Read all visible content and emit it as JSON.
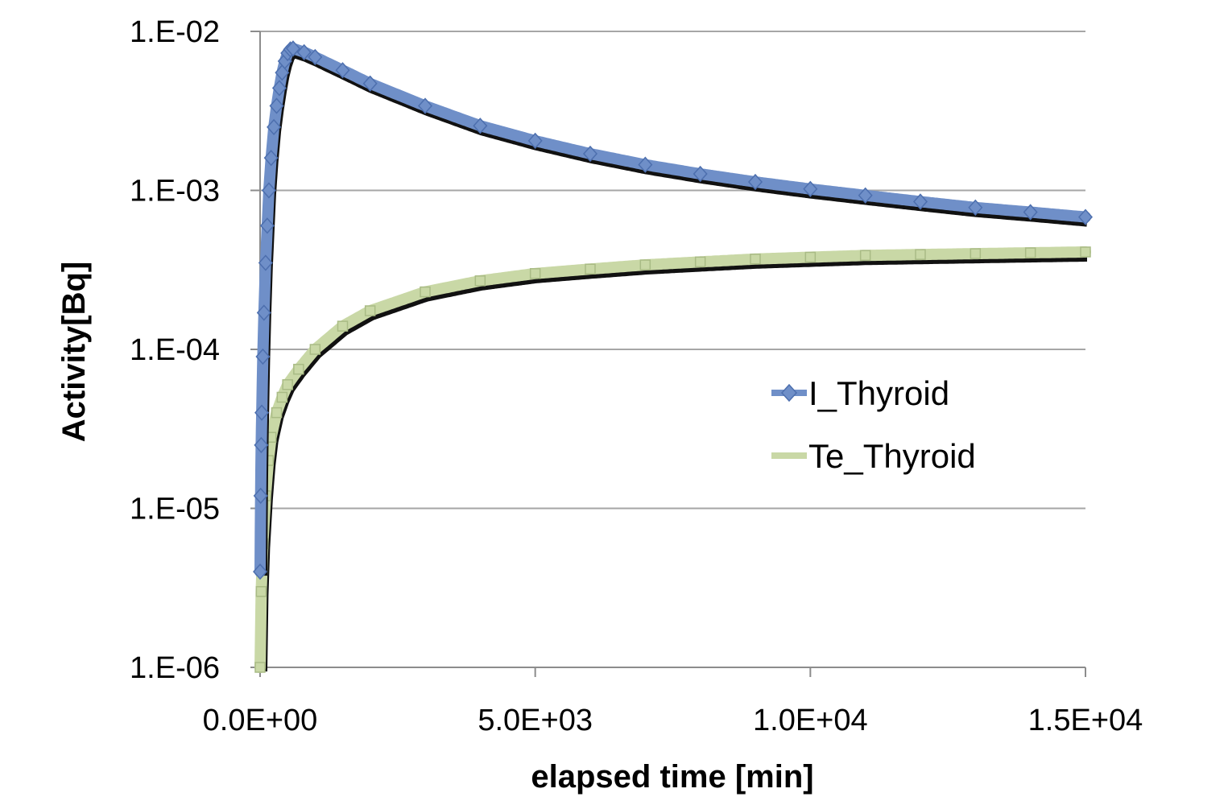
{
  "chart_data": {
    "type": "scatter",
    "title": "",
    "xlabel": "elapsed time [min]",
    "ylabel": "Activity[Bq]",
    "xlim": [
      0,
      15000
    ],
    "ylim": [
      1e-06,
      0.01
    ],
    "yscale": "log",
    "grid": "horizontal",
    "legend_position": "right-middle",
    "x_ticks": [
      {
        "value": 0,
        "label": "0.0E+00"
      },
      {
        "value": 5000,
        "label": "5.0E+03"
      },
      {
        "value": 10000,
        "label": "1.0E+04"
      },
      {
        "value": 15000,
        "label": "1.5E+04"
      }
    ],
    "y_ticks": [
      {
        "value": 0.01,
        "label": "1.E-02"
      },
      {
        "value": 0.001,
        "label": "1.E-03"
      },
      {
        "value": 0.0001,
        "label": "1.E-04"
      },
      {
        "value": 1e-05,
        "label": "1.E-05"
      },
      {
        "value": 1e-06,
        "label": "1.E-06"
      }
    ],
    "series": [
      {
        "name": "I_Thyroid",
        "color": "#6f8fc8",
        "marker": "diamond",
        "x": [
          0,
          10,
          20,
          30,
          50,
          70,
          100,
          130,
          160,
          200,
          250,
          300,
          350,
          400,
          450,
          500,
          550,
          600,
          800,
          1000,
          1500,
          2000,
          3000,
          4000,
          5000,
          6000,
          7000,
          8000,
          9000,
          10000,
          11000,
          12000,
          13000,
          14000,
          15000
        ],
        "values": [
          4e-06,
          1.2e-05,
          2.5e-05,
          4e-05,
          9e-05,
          0.00017,
          0.00035,
          0.0006,
          0.001,
          0.0016,
          0.0025,
          0.0034,
          0.0044,
          0.0055,
          0.0065,
          0.0073,
          0.0077,
          0.0078,
          0.0074,
          0.0069,
          0.0057,
          0.0047,
          0.0034,
          0.00255,
          0.00205,
          0.0017,
          0.00145,
          0.00127,
          0.00113,
          0.00102,
          0.00093,
          0.00085,
          0.00078,
          0.00073,
          0.00068
        ]
      },
      {
        "name": "Te_Thyroid",
        "color": "#c9d8a6",
        "marker": "square",
        "x": [
          0,
          20,
          50,
          100,
          150,
          200,
          300,
          400,
          500,
          700,
          1000,
          1500,
          2000,
          3000,
          4000,
          5000,
          6000,
          7000,
          8000,
          9000,
          10000,
          11000,
          12000,
          13000,
          14000,
          15000
        ],
        "values": [
          1e-06,
          3e-06,
          6e-06,
          1.2e-05,
          2e-05,
          2.8e-05,
          4e-05,
          5e-05,
          6e-05,
          7.5e-05,
          0.0001,
          0.00014,
          0.000175,
          0.00023,
          0.00027,
          0.0003,
          0.00032,
          0.00034,
          0.000355,
          0.00037,
          0.00038,
          0.00039,
          0.000395,
          0.0004,
          0.000405,
          0.00041
        ]
      }
    ]
  }
}
